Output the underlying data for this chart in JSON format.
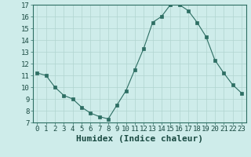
{
  "x": [
    0,
    1,
    2,
    3,
    4,
    5,
    6,
    7,
    8,
    9,
    10,
    11,
    12,
    13,
    14,
    15,
    16,
    17,
    18,
    19,
    20,
    21,
    22,
    23
  ],
  "y": [
    11.2,
    11.0,
    10.0,
    9.3,
    9.0,
    8.3,
    7.8,
    7.5,
    7.3,
    8.5,
    9.7,
    11.5,
    13.3,
    15.5,
    16.0,
    17.0,
    17.0,
    16.5,
    15.5,
    14.3,
    12.3,
    11.2,
    10.2,
    9.5
  ],
  "xlabel": "Humidex (Indice chaleur)",
  "ylim": [
    7,
    17
  ],
  "xlim_min": -0.5,
  "xlim_max": 23.5,
  "yticks": [
    7,
    8,
    9,
    10,
    11,
    12,
    13,
    14,
    15,
    16,
    17
  ],
  "xticks": [
    0,
    1,
    2,
    3,
    4,
    5,
    6,
    7,
    8,
    9,
    10,
    11,
    12,
    13,
    14,
    15,
    16,
    17,
    18,
    19,
    20,
    21,
    22,
    23
  ],
  "line_color": "#2d6e63",
  "marker": "s",
  "marker_size": 2.5,
  "bg_color": "#ceecea",
  "grid_color": "#b0d4d0",
  "xlabel_fontsize": 8,
  "tick_fontsize": 6.5
}
